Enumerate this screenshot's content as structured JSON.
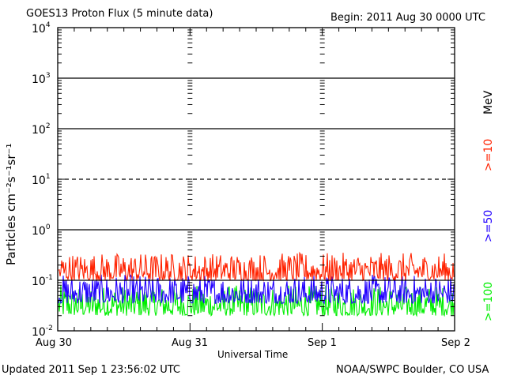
{
  "header": {
    "title": "GOES13 Proton Flux (5 minute data)",
    "begin": "Begin: 2011 Aug 30 0000 UTC"
  },
  "footer": {
    "updated": "Updated 2011 Sep  1 23:56:02 UTC",
    "source": "NOAA/SWPC Boulder, CO USA"
  },
  "colors": {
    "ge10": "#ff2200",
    "ge50": "#2200ff",
    "ge100": "#00ee00",
    "axis": "#000000"
  },
  "chart_data": {
    "type": "line",
    "title": "GOES13 Proton Flux (5 minute data)",
    "xlabel": "Universal Time",
    "ylabel": "Particles cm⁻²s⁻¹sr⁻¹",
    "y_scale": "log",
    "ylim": [
      0.01,
      10000
    ],
    "y_ticks": [
      {
        "value": 10000,
        "base": "10",
        "exp": "4"
      },
      {
        "value": 1000,
        "base": "10",
        "exp": "3"
      },
      {
        "value": 100,
        "base": "10",
        "exp": "2"
      },
      {
        "value": 10,
        "base": "10",
        "exp": "1"
      },
      {
        "value": 1,
        "base": "10",
        "exp": "0"
      },
      {
        "value": 0.1,
        "base": "10",
        "exp": "-1"
      },
      {
        "value": 0.01,
        "base": "10",
        "exp": "-2"
      }
    ],
    "x_ticks": [
      "Aug 30",
      "Aug 31",
      "Sep 1",
      "Sep 2"
    ],
    "xlim": [
      "2011-08-30 00:00",
      "2011-09-02 00:00"
    ],
    "unit_label": "MeV",
    "series": [
      {
        "name": ">=10",
        "color": "#ff2200",
        "typical": 0.15,
        "range": [
          0.1,
          0.35
        ]
      },
      {
        "name": ">=50",
        "color": "#2200ff",
        "typical": 0.06,
        "range": [
          0.035,
          0.13
        ]
      },
      {
        "name": ">=100",
        "color": "#00ee00",
        "typical": 0.035,
        "range": [
          0.02,
          0.08
        ]
      }
    ],
    "reference_lines": [
      1000,
      100,
      10,
      1,
      0.1
    ]
  }
}
